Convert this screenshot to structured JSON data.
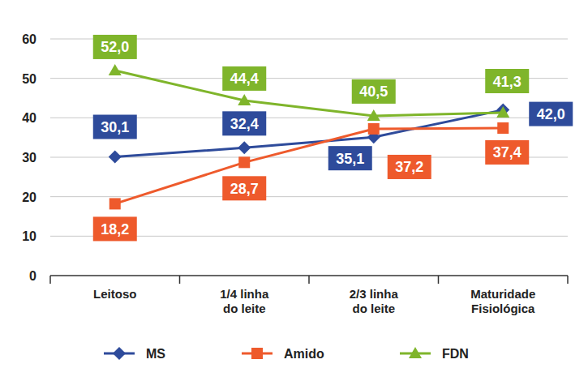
{
  "chart_data": {
    "type": "line",
    "categories": [
      "Leitoso",
      "1/4 linha\ndo leite",
      "2/3 linha\ndo leite",
      "Maturidade\nFisiológica"
    ],
    "series": [
      {
        "name": "MS",
        "color": "#2e4b9b",
        "marker": "diamond",
        "values": [
          30.1,
          32.4,
          35.1,
          42.0
        ],
        "value_labels": [
          "30,1",
          "32,4",
          "35,1",
          "42,0"
        ]
      },
      {
        "name": "Amido",
        "color": "#ee5a2c",
        "marker": "square",
        "values": [
          18.2,
          28.7,
          37.2,
          37.4
        ],
        "value_labels": [
          "18,2",
          "28,7",
          "37,2",
          "37,4"
        ]
      },
      {
        "name": "FDN",
        "color": "#7fb52b",
        "marker": "triangle",
        "values": [
          52.0,
          44.4,
          40.5,
          41.3
        ],
        "value_labels": [
          "52,0",
          "44,4",
          "40,5",
          "41,3"
        ]
      }
    ],
    "ylim": [
      0,
      60
    ],
    "yticks": [
      0,
      10,
      20,
      30,
      40,
      50,
      60
    ],
    "grid": true,
    "legend": "bottom",
    "data_labels": true
  }
}
